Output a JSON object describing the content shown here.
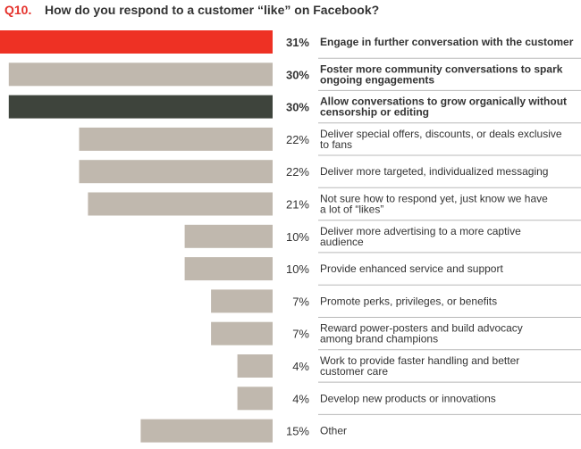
{
  "chart_data": {
    "type": "bar",
    "orientation": "horizontal",
    "question_number": "Q10.",
    "title": "How do you respond to a customer “like” on Facebook?",
    "value_suffix": "%",
    "xlim": [
      0,
      31
    ],
    "colors": {
      "highlight": "#ee3124",
      "dark": "#3e443c",
      "default": "#c0b8ae"
    },
    "categories": [
      {
        "label_lines": [
          "Engage in further conversation with the customer"
        ],
        "value": 31,
        "color": "highlight",
        "bold": true
      },
      {
        "label_lines": [
          "Foster more community conversations to spark",
          "ongoing engagements"
        ],
        "value": 30,
        "color": "default",
        "bold": true
      },
      {
        "label_lines": [
          "Allow conversations to grow organically without",
          "censorship or editing"
        ],
        "value": 30,
        "color": "dark",
        "bold": true
      },
      {
        "label_lines": [
          "Deliver special offers, discounts, or deals exclusive",
          "to fans"
        ],
        "value": 22,
        "color": "default",
        "bold": false
      },
      {
        "label_lines": [
          "Deliver more targeted, individualized messaging"
        ],
        "value": 22,
        "color": "default",
        "bold": false
      },
      {
        "label_lines": [
          "Not sure how to respond yet, just know we have",
          "a lot of “likes”"
        ],
        "value": 21,
        "color": "default",
        "bold": false
      },
      {
        "label_lines": [
          "Deliver more advertising to a more captive",
          "audience"
        ],
        "value": 10,
        "color": "default",
        "bold": false
      },
      {
        "label_lines": [
          "Provide enhanced service and support"
        ],
        "value": 10,
        "color": "default",
        "bold": false
      },
      {
        "label_lines": [
          "Promote perks, privileges, or benefits"
        ],
        "value": 7,
        "color": "default",
        "bold": false
      },
      {
        "label_lines": [
          "Reward power-posters and build advocacy",
          "among brand champions"
        ],
        "value": 7,
        "color": "default",
        "bold": false
      },
      {
        "label_lines": [
          "Work to provide faster handling and better",
          "customer care"
        ],
        "value": 4,
        "color": "default",
        "bold": false
      },
      {
        "label_lines": [
          "Develop new products or innovations"
        ],
        "value": 4,
        "color": "default",
        "bold": false
      },
      {
        "label_lines": [
          "Other"
        ],
        "value": 15,
        "color": "default",
        "bold": false
      }
    ]
  }
}
